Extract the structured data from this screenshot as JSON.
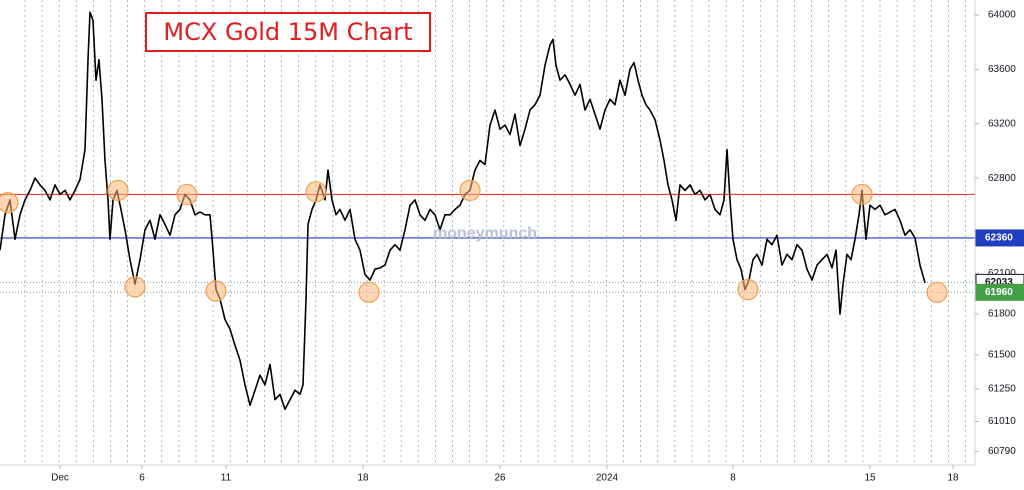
{
  "chart_data": {
    "type": "line",
    "title": "MCX Gold 15M Chart",
    "watermark": "moneymunch",
    "xlim": [
      0,
      975
    ],
    "ylim": [
      60690,
      64110
    ],
    "xticks": [
      {
        "value": 60,
        "label": "Dec"
      },
      {
        "value": 142,
        "label": "6"
      },
      {
        "value": 226,
        "label": "11"
      },
      {
        "value": 363,
        "label": "18"
      },
      {
        "value": 500,
        "label": "26"
      },
      {
        "value": 607,
        "label": "2024"
      },
      {
        "value": 733,
        "label": "8"
      },
      {
        "value": 870,
        "label": "15"
      },
      {
        "value": 953,
        "label": "18"
      }
    ],
    "yticks": [
      64000,
      63600,
      63200,
      62800,
      62100,
      61800,
      61500,
      61250,
      61010,
      60790
    ],
    "x": [
      0,
      5,
      10,
      15,
      20,
      25,
      30,
      35,
      40,
      45,
      50,
      55,
      60,
      65,
      70,
      75,
      80,
      85,
      88,
      90,
      93,
      96,
      99,
      102,
      105,
      108,
      110,
      113,
      117,
      121,
      125,
      130,
      135,
      140,
      145,
      150,
      155,
      160,
      165,
      170,
      175,
      180,
      185,
      190,
      195,
      200,
      205,
      210,
      213,
      216,
      220,
      225,
      230,
      235,
      240,
      245,
      250,
      255,
      260,
      265,
      270,
      275,
      280,
      285,
      290,
      295,
      300,
      303,
      306,
      308,
      312,
      316,
      320,
      325,
      328,
      332,
      336,
      340,
      345,
      350,
      355,
      360,
      365,
      370,
      375,
      380,
      385,
      390,
      395,
      400,
      405,
      410,
      415,
      420,
      425,
      430,
      435,
      440,
      445,
      450,
      455,
      460,
      465,
      470,
      475,
      480,
      485,
      490,
      495,
      500,
      505,
      510,
      515,
      520,
      525,
      530,
      535,
      540,
      545,
      550,
      553,
      556,
      560,
      565,
      570,
      575,
      580,
      585,
      590,
      595,
      600,
      605,
      610,
      615,
      620,
      625,
      630,
      634,
      638,
      642,
      646,
      650,
      655,
      660,
      664,
      668,
      672,
      676,
      680,
      685,
      690,
      695,
      700,
      705,
      710,
      715,
      720,
      724,
      727,
      730,
      733,
      737,
      741,
      745,
      749,
      753,
      757,
      762,
      767,
      772,
      777,
      782,
      787,
      792,
      797,
      802,
      807,
      812,
      817,
      822,
      827,
      832,
      836,
      840,
      843,
      847,
      851,
      855,
      859,
      862,
      866,
      870,
      875,
      880,
      885,
      890,
      895,
      900,
      905,
      910,
      915,
      920,
      925
    ],
    "series": [
      {
        "color": "#000000",
        "values": [
          62270,
          62530,
          62640,
          62350,
          62530,
          62640,
          62710,
          62800,
          62750,
          62710,
          62640,
          62750,
          62680,
          62710,
          62640,
          62710,
          62790,
          63010,
          63670,
          64020,
          63960,
          63520,
          63670,
          63380,
          62930,
          62640,
          62350,
          62640,
          62710,
          62570,
          62420,
          62200,
          62020,
          62200,
          62420,
          62490,
          62350,
          62530,
          62460,
          62380,
          62530,
          62570,
          62680,
          62640,
          62530,
          62550,
          62530,
          62530,
          62270,
          61980,
          61910,
          61760,
          61690,
          61570,
          61460,
          61280,
          61130,
          61240,
          61350,
          61280,
          61430,
          61170,
          61210,
          61100,
          61170,
          61240,
          61210,
          61280,
          61910,
          62460,
          62570,
          62640,
          62750,
          62640,
          62860,
          62640,
          62530,
          62570,
          62490,
          62570,
          62350,
          62270,
          62090,
          62050,
          62130,
          62140,
          62160,
          62270,
          62310,
          62270,
          62420,
          62600,
          62640,
          62530,
          62490,
          62570,
          62530,
          62420,
          62530,
          62530,
          62570,
          62600,
          62680,
          62710,
          62860,
          62930,
          62900,
          63190,
          63300,
          63160,
          63190,
          63120,
          63270,
          63040,
          63160,
          63300,
          63340,
          63410,
          63630,
          63780,
          63820,
          63630,
          63520,
          63560,
          63490,
          63410,
          63490,
          63300,
          63380,
          63270,
          63160,
          63300,
          63380,
          63340,
          63520,
          63410,
          63600,
          63650,
          63520,
          63410,
          63340,
          63300,
          63230,
          63080,
          62930,
          62750,
          62640,
          62490,
          62750,
          62710,
          62750,
          62680,
          62710,
          62640,
          62680,
          62570,
          62530,
          62640,
          63010,
          62640,
          62350,
          62200,
          62130,
          61980,
          62050,
          62200,
          62240,
          62160,
          62350,
          62310,
          62380,
          62160,
          62240,
          62200,
          62310,
          62270,
          62130,
          62050,
          62160,
          62200,
          62240,
          62140,
          62270,
          61800,
          62020,
          62240,
          62200,
          62350,
          62530,
          62710,
          62350,
          62600,
          62570,
          62600,
          62530,
          62550,
          62570,
          62490,
          62380,
          62420,
          62360,
          62160,
          62030
        ]
      }
    ],
    "levels": [
      {
        "value": 62680,
        "color": "#e53935"
      },
      {
        "value": 62360,
        "color": "#1e3fbf"
      }
    ],
    "price_tags": [
      {
        "value": 62360,
        "color": "#1e3fbf",
        "text_color": "#ffffff"
      },
      {
        "value": 62033,
        "color": "#ffffff",
        "text_color": "#131722"
      },
      {
        "value": 61960,
        "color": "#43a047",
        "text_color": "#ffffff"
      }
    ],
    "highlights": [
      {
        "x": 8,
        "value": 62620
      },
      {
        "x": 118,
        "value": 62710
      },
      {
        "x": 135,
        "value": 62000
      },
      {
        "x": 187,
        "value": 62680
      },
      {
        "x": 216,
        "value": 61970
      },
      {
        "x": 316,
        "value": 62700
      },
      {
        "x": 369,
        "value": 61960
      },
      {
        "x": 470,
        "value": 62710
      },
      {
        "x": 748,
        "value": 61980
      },
      {
        "x": 862,
        "value": 62680
      },
      {
        "x": 937,
        "value": 61960
      }
    ]
  }
}
